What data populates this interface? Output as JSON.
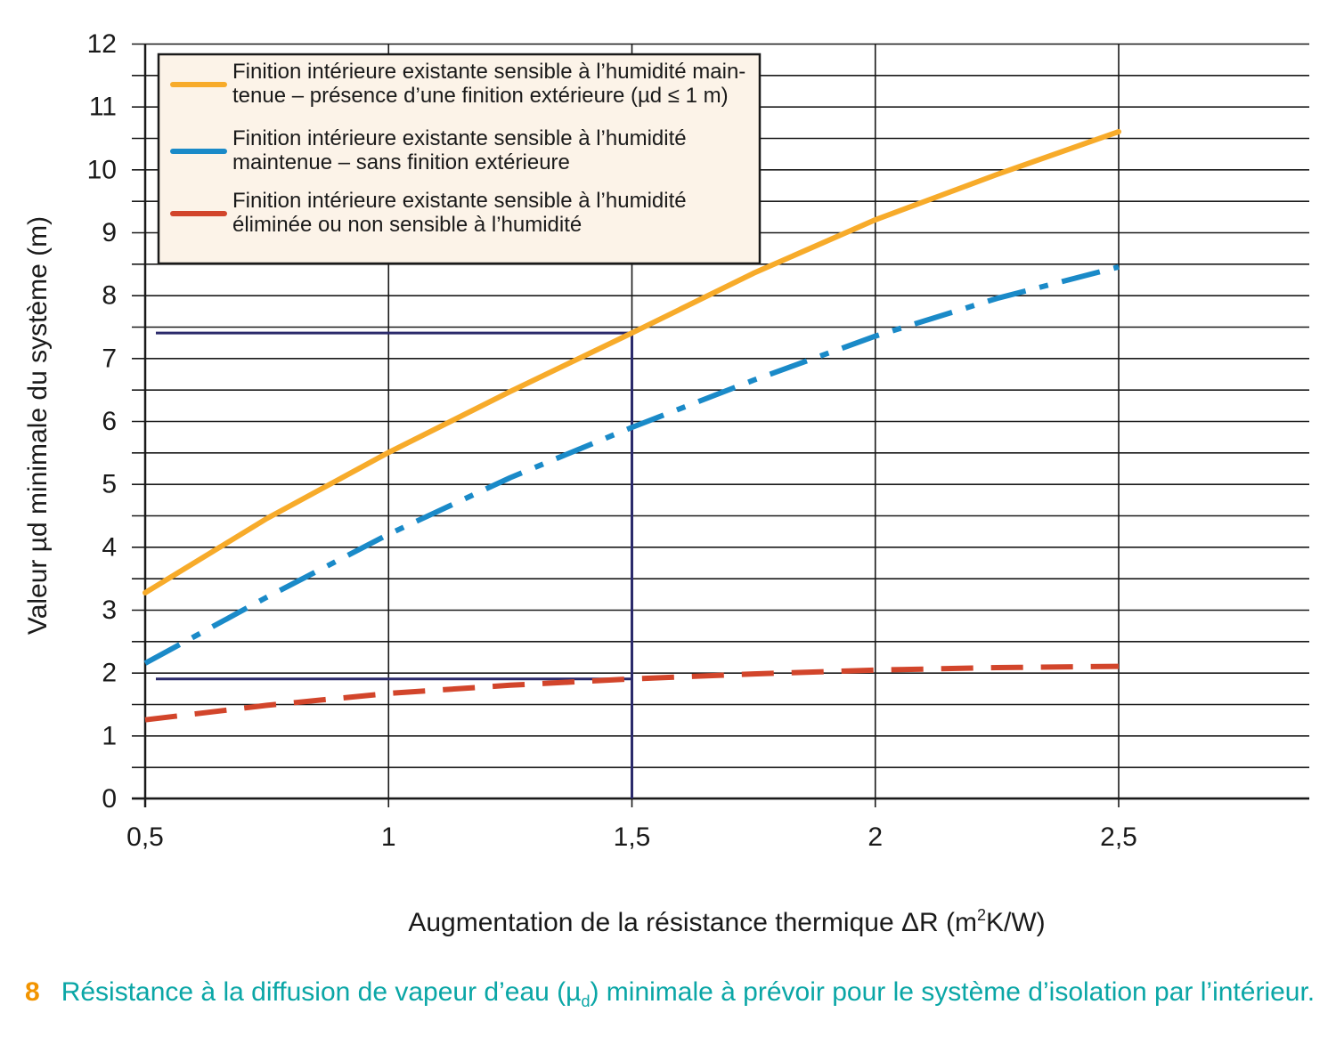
{
  "chart_data": {
    "type": "line",
    "xlabel_main": "Augmentation de la résistance thermique ΔR (m",
    "xlabel_sup": "2",
    "xlabel_end": "K/W)",
    "ylabel": "Valeur µd minimale du système (m)",
    "xlim": [
      0.5,
      2.9
    ],
    "ylim": [
      0,
      12
    ],
    "x_ticks": [
      0.5,
      1,
      1.5,
      2,
      2.5
    ],
    "x_tick_labels": [
      "0,5",
      "1",
      "1,5",
      "2",
      "2,5"
    ],
    "y_ticks": [
      0,
      1,
      2,
      3,
      4,
      5,
      6,
      7,
      8,
      9,
      10,
      11,
      12
    ],
    "y_tick_labels": [
      "0",
      "1",
      "2",
      "3",
      "4",
      "5",
      "6",
      "7",
      "8",
      "9",
      "10",
      "11",
      "12"
    ],
    "grid": true,
    "legend_position": "top-left",
    "series": [
      {
        "name_lines": [
          "Finition intérieure existante sensible à l’humidité main-",
          "tenue – présence d’une finition extérieure (µd ≤ 1 m)"
        ],
        "color": "#f7ab2a",
        "style": "solid",
        "x": [
          0.5,
          0.75,
          1.0,
          1.25,
          1.5,
          1.75,
          2.0,
          2.25,
          2.5
        ],
        "y": [
          3.27,
          4.45,
          5.5,
          6.47,
          7.4,
          8.35,
          9.2,
          9.92,
          10.6
        ]
      },
      {
        "name_lines": [
          "Finition intérieure existante sensible à l’humidité",
          "maintenue – sans finition extérieure"
        ],
        "color": "#1a8ac8",
        "style": "dashdot",
        "x": [
          0.5,
          0.75,
          1.0,
          1.25,
          1.5,
          1.75,
          2.0,
          2.25,
          2.5
        ],
        "y": [
          2.15,
          3.2,
          4.2,
          5.1,
          5.9,
          6.65,
          7.35,
          7.95,
          8.45
        ]
      },
      {
        "name_lines": [
          "Finition intérieure existante sensible à l’humidité",
          "éliminée ou non sensible à l’humidité"
        ],
        "color": "#d2452b",
        "style": "dashed",
        "x": [
          0.5,
          0.75,
          1.0,
          1.25,
          1.5,
          1.75,
          2.0,
          2.25,
          2.5
        ],
        "y": [
          1.25,
          1.48,
          1.67,
          1.8,
          1.9,
          1.98,
          2.04,
          2.08,
          2.1
        ]
      }
    ],
    "reference_lines": {
      "color": "#2b2a6b",
      "x": 1.5,
      "y_values": [
        7.4,
        1.9
      ]
    }
  },
  "caption": {
    "number": "8",
    "text_before": "Résistance à la diffusion de vapeur d’eau (µ",
    "sub": "d",
    "text_after": ") minimale à prévoir pour le système d’isolation par l’intérieur.",
    "number_color": "#f29400",
    "text_color": "#0aa6a6"
  }
}
